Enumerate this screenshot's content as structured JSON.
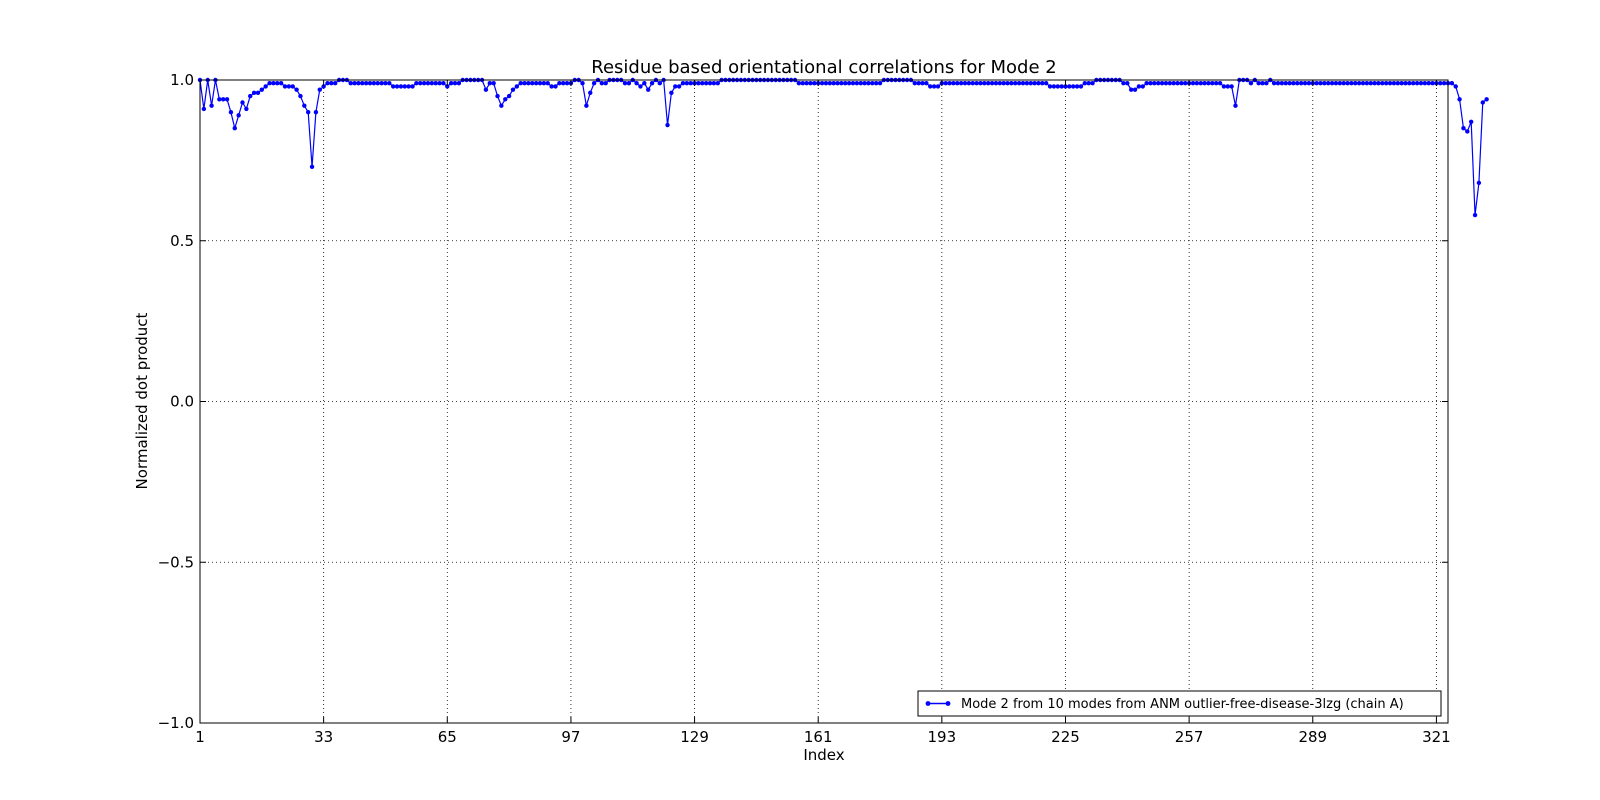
{
  "chart_data": {
    "type": "line",
    "title": "Residue based orientational correlations for Mode 2",
    "xlabel": "Index",
    "ylabel": "Normalized dot product",
    "xlim": [
      1,
      324
    ],
    "ylim": [
      -1.0,
      1.0
    ],
    "xticks": [
      1,
      33,
      65,
      97,
      129,
      161,
      193,
      225,
      257,
      289,
      321
    ],
    "yticks": [
      -1.0,
      -0.5,
      0.0,
      0.5,
      1.0
    ],
    "ytick_labels": [
      "−1.0",
      "−0.5",
      "0.0",
      "0.5",
      "1.0"
    ],
    "grid": true,
    "legend_position": "lower-right",
    "series": [
      {
        "name": "Mode 2 from 10 modes from ANM outlier-free-disease-3lzg (chain A)",
        "color": "#0000ff",
        "marker": "dot",
        "x_start": 1,
        "values": [
          1.0,
          0.91,
          1.0,
          0.92,
          1.0,
          0.94,
          0.94,
          0.94,
          0.9,
          0.85,
          0.89,
          0.93,
          0.91,
          0.95,
          0.96,
          0.96,
          0.97,
          0.98,
          0.99,
          0.99,
          0.99,
          0.99,
          0.98,
          0.98,
          0.98,
          0.97,
          0.95,
          0.92,
          0.9,
          0.73,
          0.9,
          0.97,
          0.98,
          0.99,
          0.99,
          0.99,
          1.0,
          1.0,
          1.0,
          0.99,
          0.99,
          0.99,
          0.99,
          0.99,
          0.99,
          0.99,
          0.99,
          0.99,
          0.99,
          0.99,
          0.98,
          0.98,
          0.98,
          0.98,
          0.98,
          0.98,
          0.99,
          0.99,
          0.99,
          0.99,
          0.99,
          0.99,
          0.99,
          0.99,
          0.98,
          0.99,
          0.99,
          0.99,
          1.0,
          1.0,
          1.0,
          1.0,
          1.0,
          1.0,
          0.97,
          0.99,
          0.99,
          0.95,
          0.92,
          0.94,
          0.95,
          0.97,
          0.98,
          0.99,
          0.99,
          0.99,
          0.99,
          0.99,
          0.99,
          0.99,
          0.99,
          0.98,
          0.98,
          0.99,
          0.99,
          0.99,
          0.99,
          1.0,
          1.0,
          0.99,
          0.92,
          0.96,
          0.99,
          1.0,
          0.99,
          0.99,
          1.0,
          1.0,
          1.0,
          1.0,
          0.99,
          0.99,
          1.0,
          0.99,
          0.98,
          0.99,
          0.97,
          0.99,
          1.0,
          0.99,
          1.0,
          0.86,
          0.96,
          0.98,
          0.98,
          0.99,
          0.99,
          0.99,
          0.99,
          0.99,
          0.99,
          0.99,
          0.99,
          0.99,
          0.99,
          1.0,
          1.0,
          1.0,
          1.0,
          1.0,
          1.0,
          1.0,
          1.0,
          1.0,
          1.0,
          1.0,
          1.0,
          1.0,
          1.0,
          1.0,
          1.0,
          1.0,
          1.0,
          1.0,
          1.0,
          0.99,
          0.99,
          0.99,
          0.99,
          0.99,
          0.99,
          0.99,
          0.99,
          0.99,
          0.99,
          0.99,
          0.99,
          0.99,
          0.99,
          0.99,
          0.99,
          0.99,
          0.99,
          0.99,
          0.99,
          0.99,
          0.99,
          1.0,
          1.0,
          1.0,
          1.0,
          1.0,
          1.0,
          1.0,
          1.0,
          0.99,
          0.99,
          0.99,
          0.99,
          0.98,
          0.98,
          0.98,
          0.99,
          0.99,
          0.99,
          0.99,
          0.99,
          0.99,
          0.99,
          0.99,
          0.99,
          0.99,
          0.99,
          0.99,
          0.99,
          0.99,
          0.99,
          0.99,
          0.99,
          0.99,
          0.99,
          0.99,
          0.99,
          0.99,
          0.99,
          0.99,
          0.99,
          0.99,
          0.99,
          0.99,
          0.98,
          0.98,
          0.98,
          0.98,
          0.98,
          0.98,
          0.98,
          0.98,
          0.98,
          0.99,
          0.99,
          0.99,
          1.0,
          1.0,
          1.0,
          1.0,
          1.0,
          1.0,
          1.0,
          0.99,
          0.99,
          0.97,
          0.97,
          0.98,
          0.98,
          0.99,
          0.99,
          0.99,
          0.99,
          0.99,
          0.99,
          0.99,
          0.99,
          0.99,
          0.99,
          0.99,
          0.99,
          0.99,
          0.99,
          0.99,
          0.99,
          0.99,
          0.99,
          0.99,
          0.99,
          0.98,
          0.98,
          0.98,
          0.92,
          1.0,
          1.0,
          1.0,
          0.99,
          1.0,
          0.99,
          0.99,
          0.99,
          1.0,
          0.99,
          0.99,
          0.99,
          0.99,
          0.99,
          0.99,
          0.99,
          0.99,
          0.99,
          0.99,
          0.99,
          0.99,
          0.99,
          0.99,
          0.99,
          0.99,
          0.99,
          0.99,
          0.99,
          0.99,
          0.99,
          0.99,
          0.99,
          0.99,
          0.99,
          0.99,
          0.99,
          0.99,
          0.99,
          0.99,
          0.99,
          0.99,
          0.99,
          0.99,
          0.99,
          0.99,
          0.99,
          0.99,
          0.99,
          0.99,
          0.99,
          0.99,
          0.99,
          0.99,
          0.99,
          0.99,
          0.99,
          0.98,
          0.94,
          0.85,
          0.84,
          0.87,
          0.58,
          0.68,
          0.93,
          0.94
        ]
      }
    ]
  }
}
